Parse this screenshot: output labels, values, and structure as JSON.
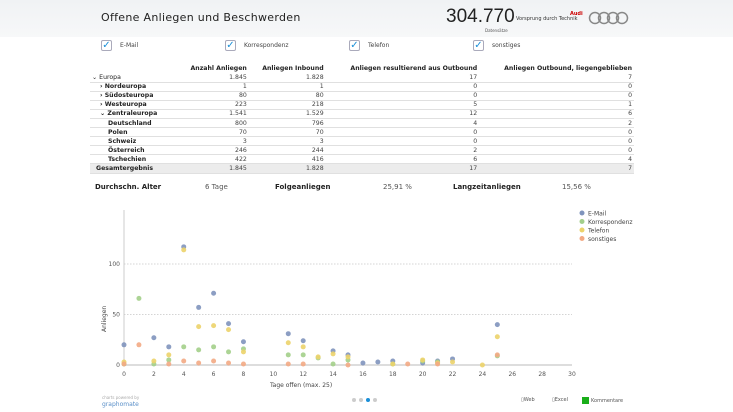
{
  "header": {
    "title": "Offene Anliegen und Beschwerden",
    "kpi_value": "304.770",
    "kpi_label": "Datensätze",
    "slogan": "Vorsprung durch Technik",
    "brand": "Audi"
  },
  "filters": [
    {
      "label": "E-Mail",
      "checked": true
    },
    {
      "label": "Korrespondenz",
      "checked": true
    },
    {
      "label": "Telefon",
      "checked": true
    },
    {
      "label": "sonstiges",
      "checked": true
    }
  ],
  "table": {
    "columns": [
      "",
      "Anzahl Anliegen",
      "Anliegen Inbound",
      "Anliegen resultierend aus Outbound",
      "Anliegen Outbound, liegengeblieben"
    ],
    "rows": [
      {
        "label": "Europa",
        "prefix": "⌄",
        "indent": 0,
        "values": [
          "1.845",
          "1.828",
          "17",
          "7"
        ]
      },
      {
        "label": "Nordeuropa",
        "prefix": "›",
        "indent": 1,
        "values": [
          "1",
          "1",
          "0",
          "0"
        ]
      },
      {
        "label": "Südosteuropa",
        "prefix": "›",
        "indent": 1,
        "values": [
          "80",
          "80",
          "0",
          "0"
        ]
      },
      {
        "label": "Westeuropa",
        "prefix": "›",
        "indent": 1,
        "values": [
          "223",
          "218",
          "5",
          "1"
        ]
      },
      {
        "label": "Zentraleuropa",
        "prefix": "⌄",
        "indent": 1,
        "values": [
          "1.541",
          "1.529",
          "12",
          "6"
        ]
      },
      {
        "label": "Deutschland",
        "prefix": "",
        "indent": 2,
        "values": [
          "800",
          "796",
          "4",
          "2"
        ]
      },
      {
        "label": "Polen",
        "prefix": "",
        "indent": 2,
        "values": [
          "70",
          "70",
          "0",
          "0"
        ]
      },
      {
        "label": "Schweiz",
        "prefix": "",
        "indent": 2,
        "values": [
          "3",
          "3",
          "0",
          "0"
        ]
      },
      {
        "label": "Österreich",
        "prefix": "",
        "indent": 2,
        "values": [
          "246",
          "244",
          "2",
          "0"
        ]
      },
      {
        "label": "Tschechien",
        "prefix": "",
        "indent": 2,
        "values": [
          "422",
          "416",
          "6",
          "4"
        ]
      }
    ],
    "total": {
      "label": "Gesamtergebnis",
      "values": [
        "1.845",
        "1.828",
        "17",
        "7"
      ]
    }
  },
  "stats": {
    "avg_label": "Durchschn. Alter",
    "avg_value": "6 Tage",
    "follow_label": "Folgeanliegen",
    "follow_value": "25,91 %",
    "long_label": "Langzeitanliegen",
    "long_value": "15,56 %"
  },
  "chart_data": {
    "type": "scatter",
    "xlabel": "Tage offen (max. 25)",
    "ylabel": "Anliegen",
    "xlim": [
      0,
      30
    ],
    "ylim": [
      0,
      120
    ],
    "xticks": [
      0,
      2,
      4,
      6,
      8,
      10,
      12,
      14,
      16,
      18,
      20,
      22,
      24,
      26,
      28,
      30
    ],
    "yticks": [
      0,
      50,
      100
    ],
    "grid": "horizontal dotted",
    "legend": "top-right",
    "series": [
      {
        "name": "E-Mail",
        "color": "#7f94bd",
        "points": [
          [
            0,
            20
          ],
          [
            2,
            27
          ],
          [
            3,
            18
          ],
          [
            4,
            117
          ],
          [
            5,
            57
          ],
          [
            6,
            71
          ],
          [
            7,
            41
          ],
          [
            8,
            23
          ],
          [
            11,
            31
          ],
          [
            12,
            24
          ],
          [
            14,
            14
          ],
          [
            15,
            10
          ],
          [
            16,
            2
          ],
          [
            17,
            3
          ],
          [
            18,
            4
          ],
          [
            20,
            2
          ],
          [
            21,
            4
          ],
          [
            22,
            6
          ],
          [
            25,
            40
          ]
        ]
      },
      {
        "name": "Korrespondenz",
        "color": "#a3cf8a",
        "points": [
          [
            0,
            1
          ],
          [
            1,
            66
          ],
          [
            2,
            1
          ],
          [
            3,
            5
          ],
          [
            4,
            18
          ],
          [
            5,
            15
          ],
          [
            6,
            18
          ],
          [
            7,
            13
          ],
          [
            8,
            16
          ],
          [
            11,
            10
          ],
          [
            12,
            10
          ],
          [
            13,
            7
          ],
          [
            14,
            1
          ],
          [
            15,
            5
          ],
          [
            18,
            1
          ],
          [
            20,
            4
          ],
          [
            21,
            3
          ],
          [
            25,
            9
          ]
        ]
      },
      {
        "name": "Telefon",
        "color": "#ecd36a",
        "points": [
          [
            0,
            3
          ],
          [
            2,
            4
          ],
          [
            3,
            10
          ],
          [
            4,
            114
          ],
          [
            5,
            38
          ],
          [
            6,
            39
          ],
          [
            7,
            35
          ],
          [
            8,
            13
          ],
          [
            11,
            22
          ],
          [
            12,
            18
          ],
          [
            13,
            8
          ],
          [
            14,
            11
          ],
          [
            15,
            8
          ],
          [
            18,
            1
          ],
          [
            20,
            5
          ],
          [
            21,
            2
          ],
          [
            22,
            3
          ],
          [
            24,
            0
          ],
          [
            25,
            28
          ]
        ]
      },
      {
        "name": "sonstiges",
        "color": "#f3aa84",
        "points": [
          [
            0,
            1
          ],
          [
            1,
            20
          ],
          [
            3,
            1
          ],
          [
            4,
            4
          ],
          [
            5,
            2
          ],
          [
            6,
            4
          ],
          [
            7,
            2
          ],
          [
            8,
            1
          ],
          [
            11,
            1
          ],
          [
            12,
            1
          ],
          [
            15,
            0
          ],
          [
            19,
            1
          ],
          [
            21,
            1
          ],
          [
            25,
            10
          ]
        ]
      }
    ]
  },
  "footer": {
    "powered": "charts powered by",
    "logo": "graphomate",
    "web": "Web",
    "excel": "Excel",
    "comments": "Kommentare",
    "pages": 4,
    "active_page": 3
  }
}
